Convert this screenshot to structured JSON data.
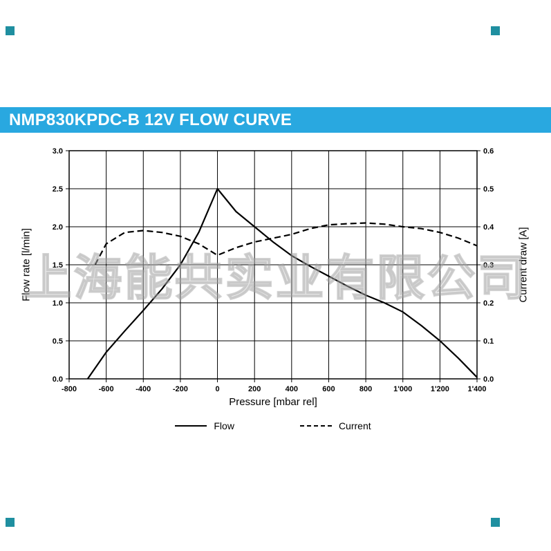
{
  "header": {
    "title": "NMP830KPDC-B 12V FLOW CURVE",
    "bg_color": "#29a8e0",
    "text_color": "#ffffff"
  },
  "watermark": {
    "text": "上海能共实业有限公司"
  },
  "accents": {
    "corner_marker_color": "#1f8fa0",
    "line_color": "#000000",
    "grid_color": "#000000"
  },
  "chart_data": {
    "type": "line",
    "title": "NMP830KPDC-B 12V FLOW CURVE",
    "xlabel": "Pressure [mbar rel]",
    "ylabel_left": "Flow rate [l/min]",
    "ylabel_right": "Current draw [A]",
    "xlim": [
      -800,
      1400
    ],
    "ylim_left": [
      0.0,
      3.0
    ],
    "ylim_right": [
      0.0,
      0.6
    ],
    "grid": true,
    "x_tick_labels": [
      "-800",
      "-600",
      "-400",
      "-200",
      "0",
      "200",
      "400",
      "600",
      "800",
      "1'000",
      "1'200",
      "1'400"
    ],
    "x_tick_values": [
      -800,
      -600,
      -400,
      -200,
      0,
      200,
      400,
      600,
      800,
      1000,
      1200,
      1400
    ],
    "y_tick_labels_left": [
      "0.0",
      "0.5",
      "1.0",
      "1.5",
      "2.0",
      "2.5",
      "3.0"
    ],
    "y_tick_values_left": [
      0,
      0.5,
      1,
      1.5,
      2,
      2.5,
      3
    ],
    "y_tick_labels_right": [
      "0.0",
      "0.1",
      "0.2",
      "0.3",
      "0.4",
      "0.5",
      "0.6"
    ],
    "y_tick_values_right": [
      0,
      0.1,
      0.2,
      0.3,
      0.4,
      0.5,
      0.6
    ],
    "series": [
      {
        "name": "Flow",
        "axis": "left",
        "line_style": "solid",
        "x": [
          -700,
          -600,
          -500,
          -400,
          -300,
          -200,
          -100,
          0,
          100,
          200,
          300,
          400,
          500,
          600,
          700,
          800,
          900,
          1000,
          1100,
          1200,
          1300,
          1400
        ],
        "values": [
          0,
          0.35,
          0.63,
          0.9,
          1.18,
          1.5,
          1.93,
          2.5,
          2.2,
          2.0,
          1.8,
          1.62,
          1.48,
          1.35,
          1.22,
          1.1,
          1.0,
          0.88,
          0.7,
          0.5,
          0.27,
          0.02
        ]
      },
      {
        "name": "Current",
        "axis": "right",
        "line_style": "dashed",
        "x": [
          -660,
          -600,
          -500,
          -400,
          -300,
          -200,
          -100,
          0,
          100,
          200,
          300,
          400,
          500,
          600,
          700,
          800,
          900,
          1000,
          1100,
          1200,
          1300,
          1400
        ],
        "values": [
          0.3,
          0.355,
          0.385,
          0.39,
          0.385,
          0.375,
          0.355,
          0.325,
          0.345,
          0.36,
          0.37,
          0.38,
          0.395,
          0.405,
          0.408,
          0.41,
          0.407,
          0.4,
          0.395,
          0.385,
          0.37,
          0.35
        ]
      }
    ],
    "legend": {
      "position": "bottom",
      "items": [
        {
          "label": "Flow",
          "line_style": "solid"
        },
        {
          "label": "Current",
          "line_style": "dashed"
        }
      ]
    }
  }
}
